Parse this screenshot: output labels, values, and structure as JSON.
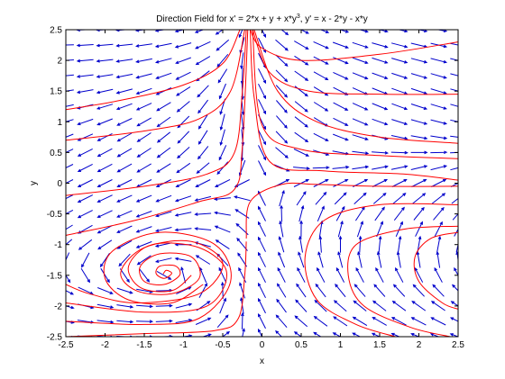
{
  "chart_data": {
    "type": "quiver",
    "title": "Direction Field for x' = 2*x + y + x*y",
    "title_superscript": "3",
    "title_suffix": ", y' = x - 2*y - x*y",
    "xlabel": "x",
    "ylabel": "y",
    "xlim": [
      -2.5,
      2.5
    ],
    "ylim": [
      -2.5,
      2.5
    ],
    "xticks": [
      -2.5,
      -2,
      -1.5,
      -1,
      -0.5,
      0,
      0.5,
      1,
      1.5,
      2,
      2.5
    ],
    "yticks": [
      -2.5,
      -2,
      -1.5,
      -1,
      -0.5,
      0,
      0.5,
      1,
      1.5,
      2,
      2.5
    ],
    "xtick_labels": [
      "-2.5",
      "-2",
      "-1.5",
      "-1",
      "-0.5",
      "0",
      "0.5",
      "1",
      "1.5",
      "2",
      "2.5"
    ],
    "ytick_labels": [
      "-2.5",
      "-2",
      "-1.5",
      "-1",
      "-0.5",
      "0",
      "0.5",
      "1",
      "1.5",
      "2",
      "2.5"
    ],
    "grid": false,
    "vector_field": {
      "dx": "2*x + y + x*y^3",
      "dy": "x - 2*y - x*y",
      "x_start": -2.5,
      "x_stop": 2.5,
      "x_step": 0.25,
      "y_start": -2.5,
      "y_stop": 2.5,
      "y_step": 0.25,
      "color": "#0000cc"
    },
    "trajectories": {
      "color": "#ff0000",
      "curves": [
        [
          [
            -2.5,
            1.2
          ],
          [
            -1.8,
            1.35
          ],
          [
            -1.0,
            1.6
          ],
          [
            -0.5,
            1.95
          ],
          [
            -0.28,
            2.5
          ]
        ],
        [
          [
            -2.5,
            0.7
          ],
          [
            -1.5,
            0.85
          ],
          [
            -0.8,
            1.05
          ],
          [
            -0.4,
            1.5
          ],
          [
            -0.22,
            2.5
          ]
        ],
        [
          [
            -2.5,
            -0.2
          ],
          [
            -1.5,
            -0.05
          ],
          [
            -0.7,
            0.15
          ],
          [
            -0.35,
            0.5
          ],
          [
            -0.25,
            1.5
          ],
          [
            -0.2,
            2.5
          ]
        ],
        [
          [
            -2.5,
            -0.85
          ],
          [
            -1.6,
            -0.6
          ],
          [
            -0.8,
            -0.3
          ],
          [
            -0.35,
            -0.1
          ],
          [
            -0.25,
            0.6
          ],
          [
            -0.18,
            2.5
          ]
        ],
        [
          [
            2.5,
            2.3
          ],
          [
            1.5,
            2.1
          ],
          [
            0.5,
            2.0
          ],
          [
            0.0,
            2.2
          ],
          [
            -0.15,
            2.5
          ]
        ],
        [
          [
            2.5,
            1.45
          ],
          [
            1.5,
            1.45
          ],
          [
            0.6,
            1.5
          ],
          [
            0.1,
            1.8
          ],
          [
            -0.12,
            2.5
          ]
        ],
        [
          [
            2.5,
            0.65
          ],
          [
            1.5,
            0.75
          ],
          [
            0.7,
            1.0
          ],
          [
            0.2,
            1.5
          ],
          [
            -0.1,
            2.5
          ]
        ],
        [
          [
            2.5,
            0.4
          ],
          [
            1.5,
            0.45
          ],
          [
            0.5,
            0.55
          ],
          [
            0.0,
            0.95
          ],
          [
            -0.12,
            2.5
          ]
        ],
        [
          [
            2.5,
            0.05
          ],
          [
            1.8,
            0.15
          ],
          [
            0.8,
            0.2
          ],
          [
            0.1,
            0.35
          ],
          [
            -0.1,
            1.4
          ],
          [
            -0.15,
            2.5
          ]
        ],
        [
          [
            2.5,
            -0.05
          ],
          [
            1.5,
            -0.05
          ],
          [
            0.7,
            -0.02
          ],
          [
            0.25,
            -0.02
          ],
          [
            -0.15,
            -0.3
          ],
          [
            -0.2,
            -0.9
          ]
        ],
        [
          [
            2.5,
            -0.35
          ],
          [
            1.5,
            -0.35
          ],
          [
            0.8,
            -0.6
          ],
          [
            0.55,
            -1.2
          ],
          [
            0.7,
            -1.9
          ],
          [
            1.2,
            -2.3
          ],
          [
            1.7,
            -2.5
          ]
        ],
        [
          [
            2.5,
            -0.7
          ],
          [
            1.8,
            -0.75
          ],
          [
            1.2,
            -1.0
          ],
          [
            1.1,
            -1.5
          ],
          [
            1.3,
            -2.0
          ],
          [
            1.9,
            -2.35
          ],
          [
            2.4,
            -2.5
          ]
        ],
        [
          [
            2.5,
            -0.8
          ],
          [
            2.15,
            -0.9
          ],
          [
            1.95,
            -1.2
          ],
          [
            2.0,
            -1.6
          ],
          [
            2.3,
            -1.95
          ],
          [
            2.5,
            -2.05
          ]
        ],
        [
          [
            -2.5,
            -1.65
          ],
          [
            -2.2,
            -1.8
          ],
          [
            -1.6,
            -1.95
          ],
          [
            -0.8,
            -1.8
          ],
          [
            -0.5,
            -1.3
          ],
          [
            -0.9,
            -0.95
          ],
          [
            -1.5,
            -1.05
          ],
          [
            -1.8,
            -1.45
          ],
          [
            -1.6,
            -1.75
          ],
          [
            -1.15,
            -1.8
          ],
          [
            -0.8,
            -1.55
          ],
          [
            -0.9,
            -1.2
          ],
          [
            -1.3,
            -1.15
          ],
          [
            -1.55,
            -1.35
          ],
          [
            -1.5,
            -1.6
          ],
          [
            -1.25,
            -1.65
          ],
          [
            -1.05,
            -1.5
          ],
          [
            -1.1,
            -1.35
          ],
          [
            -1.3,
            -1.35
          ],
          [
            -1.35,
            -1.47
          ],
          [
            -1.25,
            -1.55
          ],
          [
            -1.15,
            -1.47
          ],
          [
            -1.22,
            -1.42
          ],
          [
            -1.26,
            -1.48
          ]
        ],
        [
          [
            -2.5,
            -2.25
          ],
          [
            -1.5,
            -2.3
          ],
          [
            -0.8,
            -2.2
          ],
          [
            -0.4,
            -1.6
          ],
          [
            -0.6,
            -1.0
          ],
          [
            -1.3,
            -0.8
          ],
          [
            -1.9,
            -1.1
          ],
          [
            -2.0,
            -1.55
          ],
          [
            -1.7,
            -1.9
          ],
          [
            -1.15,
            -1.95
          ],
          [
            -0.75,
            -1.65
          ]
        ],
        [
          [
            -2.5,
            -1.95
          ],
          [
            -1.5,
            -2.1
          ],
          [
            -0.7,
            -2.0
          ],
          [
            -0.45,
            -1.45
          ],
          [
            -0.8,
            -1.05
          ],
          [
            -1.4,
            -1.0
          ],
          [
            -1.7,
            -1.35
          ],
          [
            -1.55,
            -1.7
          ],
          [
            -1.15,
            -1.75
          ],
          [
            -0.9,
            -1.5
          ]
        ],
        [
          [
            -2.5,
            -2.5
          ],
          [
            -1.5,
            -2.45
          ],
          [
            -0.6,
            -2.4
          ],
          [
            -0.3,
            -2.2
          ],
          [
            -0.22,
            -1.5
          ],
          [
            -0.2,
            -0.95
          ]
        ]
      ]
    }
  }
}
